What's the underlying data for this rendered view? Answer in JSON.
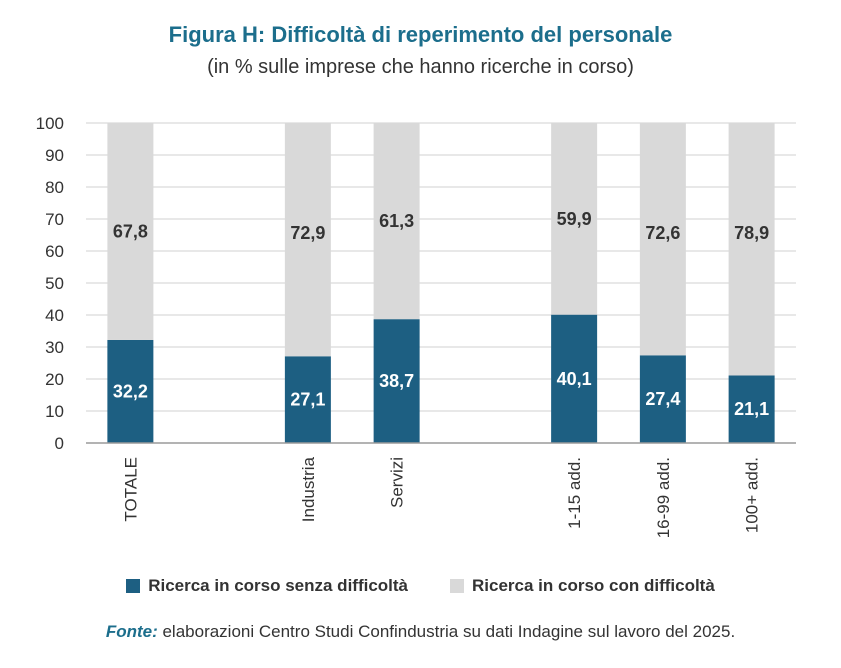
{
  "chart_data": {
    "type": "bar",
    "stacked": true,
    "title": "Figura H: Difficoltà di reperimento del personale",
    "subtitle": "(in % sulle imprese che hanno ricerche in corso)",
    "categories": [
      "TOTALE",
      "",
      "Industria",
      "Servizi",
      "",
      "1-15 add.",
      "16-99 add.",
      "100+ add."
    ],
    "series": [
      {
        "name": "Ricerca in corso senza difficoltà",
        "values": [
          32.2,
          null,
          27.1,
          38.7,
          null,
          40.1,
          27.4,
          21.1
        ],
        "labels": [
          "32,2",
          "",
          "27,1",
          "38,7",
          "",
          "40,1",
          "27,4",
          "21,1"
        ],
        "color": "#1d5f82"
      },
      {
        "name": "Ricerca in corso con difficoltà",
        "values": [
          67.8,
          null,
          72.9,
          61.3,
          null,
          59.9,
          72.6,
          78.9
        ],
        "labels": [
          "67,8",
          "",
          "72,9",
          "61,3",
          "",
          "59,9",
          "72,6",
          "78,9"
        ],
        "color": "#d9d9d9"
      }
    ],
    "ylim": [
      0,
      100
    ],
    "yticks": [
      0,
      10,
      20,
      30,
      40,
      50,
      60,
      70,
      80,
      90,
      100
    ],
    "grid": true,
    "legend_position": "bottom"
  },
  "source": {
    "label": "Fonte:",
    "text": " elaborazioni Centro Studi Confindustria su dati Indagine sul lavoro del 2025."
  }
}
